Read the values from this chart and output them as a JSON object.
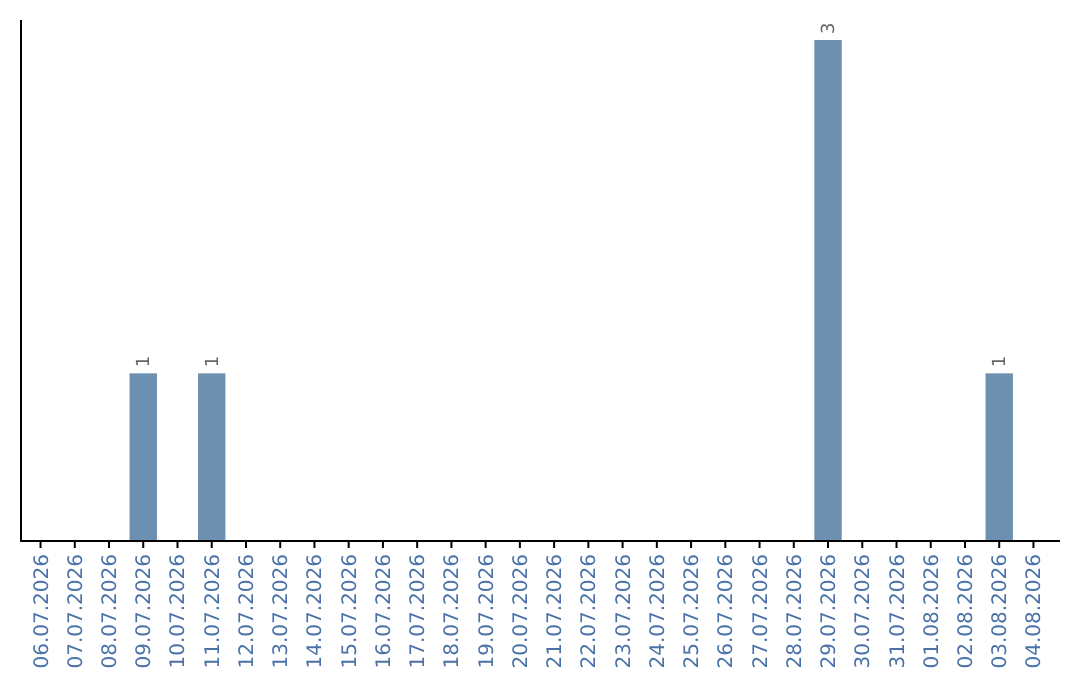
{
  "chart_data": {
    "type": "bar",
    "categories": [
      "06.07.2026",
      "07.07.2026",
      "08.07.2026",
      "09.07.2026",
      "10.07.2026",
      "11.07.2026",
      "12.07.2026",
      "13.07.2026",
      "14.07.2026",
      "15.07.2026",
      "16.07.2026",
      "17.07.2026",
      "18.07.2026",
      "19.07.2026",
      "20.07.2026",
      "21.07.2026",
      "22.07.2026",
      "23.07.2026",
      "24.07.2026",
      "25.07.2026",
      "26.07.2026",
      "27.07.2026",
      "28.07.2026",
      "29.07.2026",
      "30.07.2026",
      "31.07.2026",
      "01.08.2026",
      "02.08.2026",
      "03.08.2026",
      "04.08.2026"
    ],
    "values": [
      0,
      0,
      0,
      1,
      0,
      1,
      0,
      0,
      0,
      0,
      0,
      0,
      0,
      0,
      0,
      0,
      0,
      0,
      0,
      0,
      0,
      0,
      0,
      3,
      0,
      0,
      0,
      0,
      1,
      0
    ],
    "value_labels": [
      null,
      null,
      null,
      "1",
      null,
      "1",
      null,
      null,
      null,
      null,
      null,
      null,
      null,
      null,
      null,
      null,
      null,
      null,
      null,
      null,
      null,
      null,
      null,
      "3",
      null,
      null,
      null,
      null,
      "1",
      null
    ],
    "color": "#6d8fb0",
    "tick_labels": "x"
  }
}
